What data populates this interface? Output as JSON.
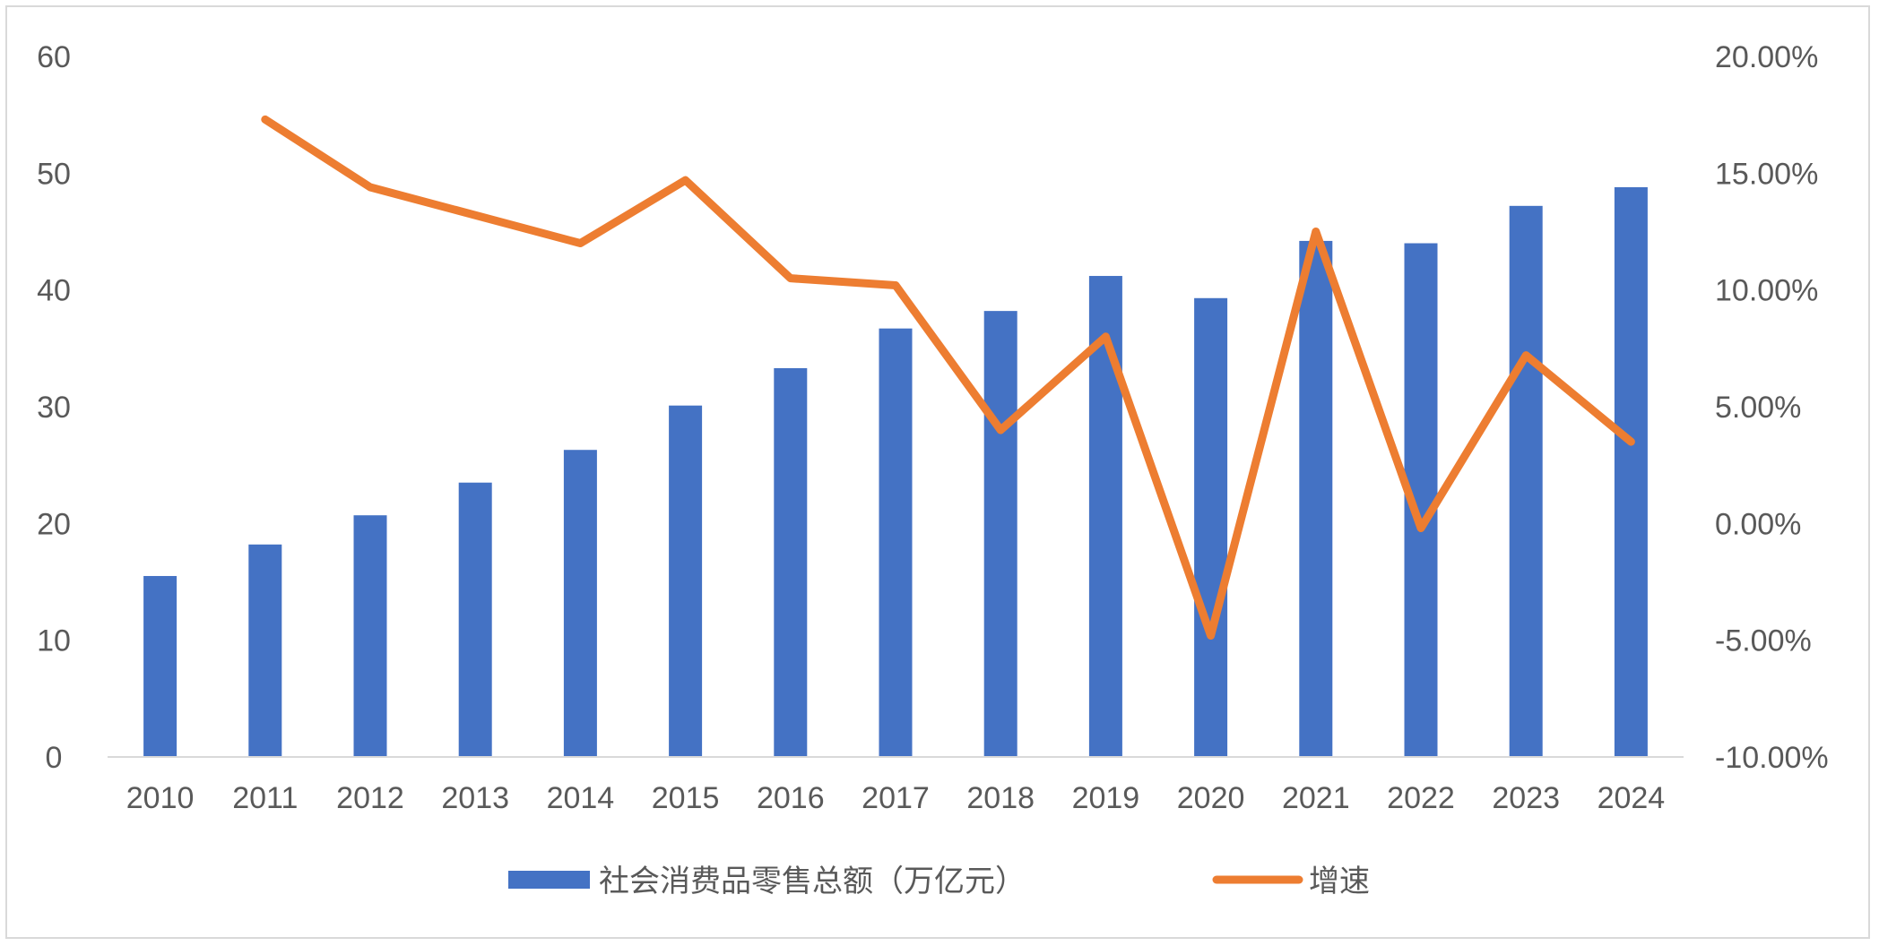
{
  "chart_data": {
    "type": "bar+line",
    "categories": [
      "2010",
      "2011",
      "2012",
      "2013",
      "2014",
      "2015",
      "2016",
      "2017",
      "2018",
      "2019",
      "2020",
      "2021",
      "2022",
      "2023",
      "2024"
    ],
    "series": [
      {
        "name": "社会消费品零售总额（万亿元）",
        "type": "bar",
        "axis": "left",
        "color": "#4472C4",
        "values": [
          15.5,
          18.2,
          20.7,
          23.5,
          26.3,
          30.1,
          33.3,
          36.7,
          38.2,
          41.2,
          39.3,
          44.2,
          44.0,
          47.2,
          48.8
        ]
      },
      {
        "name": "增速",
        "type": "line",
        "axis": "right",
        "color": "#ED7D31",
        "values": [
          null,
          17.3,
          14.4,
          13.2,
          12.0,
          14.7,
          10.5,
          10.2,
          4.0,
          8.0,
          -4.8,
          12.5,
          -0.2,
          7.2,
          3.5
        ]
      }
    ],
    "left_axis": {
      "ylim": [
        0,
        60
      ],
      "ticks": [
        "0",
        "10",
        "20",
        "30",
        "40",
        "50",
        "60"
      ]
    },
    "right_axis": {
      "ylim": [
        -10,
        20
      ],
      "ticks": [
        "-10.00%",
        "-5.00%",
        "0.00%",
        "5.00%",
        "10.00%",
        "15.00%",
        "20.00%"
      ]
    },
    "grid": false,
    "legend_position": "bottom",
    "title": ""
  }
}
